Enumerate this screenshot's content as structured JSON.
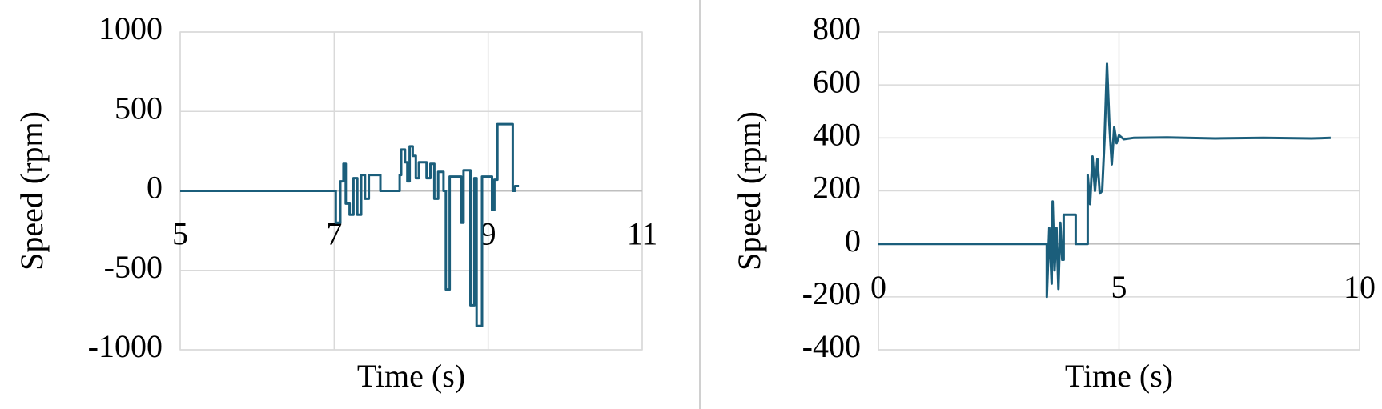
{
  "chart_data": [
    {
      "type": "line",
      "x_label": "Time (s)",
      "y_label": "Speed (rpm)",
      "color": "#1b5e7b",
      "grid": true,
      "xlim": [
        5,
        11
      ],
      "xticks": [
        5,
        7,
        9,
        11
      ],
      "ylim": [
        -1000,
        1000
      ],
      "yticks": [
        -1000,
        -500,
        0,
        500,
        1000
      ],
      "x": [
        5,
        7.02,
        7.02,
        7.08,
        7.08,
        7.12,
        7.12,
        7.15,
        7.15,
        7.2,
        7.2,
        7.25,
        7.25,
        7.3,
        7.3,
        7.35,
        7.35,
        7.4,
        7.4,
        7.45,
        7.45,
        7.6,
        7.6,
        7.85,
        7.85,
        7.87,
        7.87,
        7.92,
        7.92,
        7.95,
        7.95,
        7.98,
        7.98,
        8.02,
        8.02,
        8.06,
        8.06,
        8.1,
        8.1,
        8.2,
        8.2,
        8.25,
        8.25,
        8.3,
        8.3,
        8.35,
        8.35,
        8.42,
        8.42,
        8.45,
        8.45,
        8.5,
        8.5,
        8.65,
        8.65,
        8.68,
        8.68,
        8.77,
        8.77,
        8.82,
        8.82,
        8.85,
        8.85,
        8.92,
        8.92,
        9.05,
        9.05,
        9.08,
        9.08,
        9.12,
        9.12,
        9.32,
        9.32,
        9.35,
        9.35,
        9.4
      ],
      "values": [
        0,
        0,
        -200,
        -200,
        60,
        60,
        170,
        170,
        -80,
        -80,
        -150,
        -150,
        80,
        80,
        -150,
        -150,
        100,
        100,
        -50,
        -50,
        100,
        100,
        0,
        0,
        100,
        100,
        260,
        260,
        180,
        180,
        60,
        60,
        280,
        280,
        220,
        220,
        80,
        80,
        180,
        180,
        80,
        80,
        170,
        170,
        -50,
        -50,
        120,
        120,
        0,
        0,
        -620,
        -620,
        90,
        90,
        -200,
        -200,
        130,
        130,
        -720,
        -720,
        80,
        80,
        -850,
        -850,
        90,
        90,
        -120,
        -120,
        70,
        70,
        420,
        420,
        0,
        0,
        30,
        30
      ]
    },
    {
      "type": "line",
      "x_label": "Time (s)",
      "y_label": "Speed (rpm)",
      "color": "#1b5e7b",
      "grid": true,
      "xlim": [
        0,
        10
      ],
      "xticks": [
        0,
        5,
        10
      ],
      "ylim": [
        -400,
        800
      ],
      "yticks": [
        -400,
        -200,
        0,
        200,
        400,
        600,
        800
      ],
      "x": [
        0,
        3.5,
        3.5,
        3.55,
        3.6,
        3.62,
        3.66,
        3.7,
        3.74,
        3.78,
        3.82,
        3.85,
        3.85,
        4.1,
        4.1,
        4.35,
        4.35,
        4.4,
        4.45,
        4.5,
        4.55,
        4.6,
        4.65,
        4.7,
        4.75,
        4.8,
        4.85,
        4.9,
        4.95,
        5.0,
        5.1,
        5.3,
        6,
        7,
        8,
        9,
        9.4
      ],
      "values": [
        0,
        0,
        -200,
        60,
        -150,
        160,
        -100,
        60,
        -170,
        80,
        -60,
        -60,
        110,
        110,
        0,
        0,
        260,
        150,
        330,
        200,
        320,
        190,
        200,
        400,
        680,
        450,
        300,
        440,
        380,
        410,
        395,
        400,
        402,
        398,
        400,
        398,
        400
      ]
    }
  ]
}
